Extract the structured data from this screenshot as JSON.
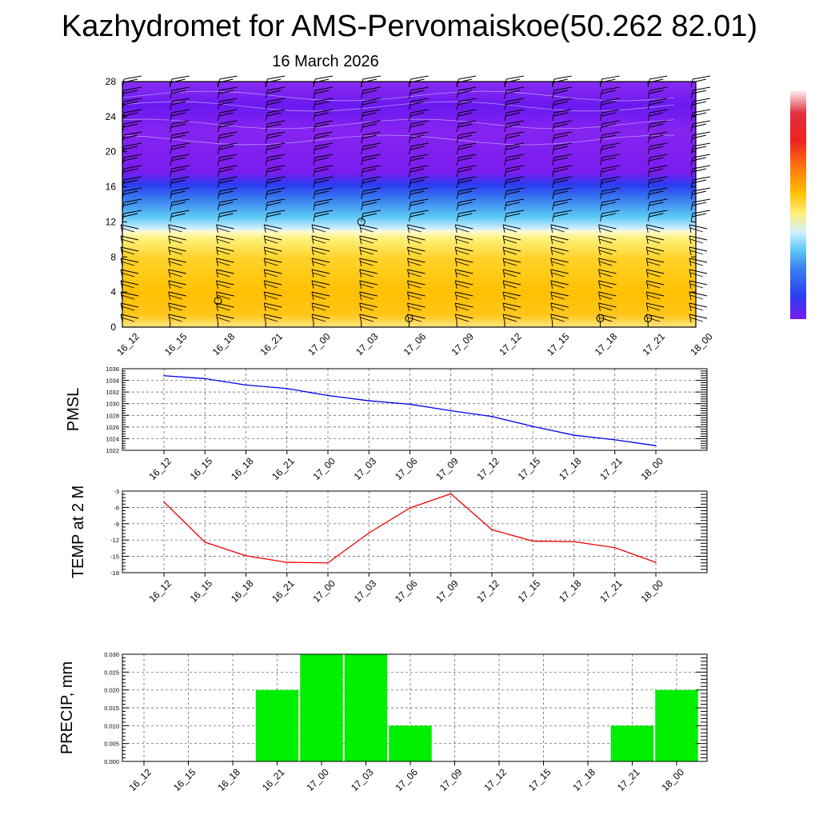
{
  "title": "Kazhydromet for AMS-Pervomaiskoe(50.262 82.01)",
  "subtitle": "16 March 2026",
  "colors": {
    "pmsl_line": "#0000ee",
    "temp_line": "#ee0000",
    "precip_bar": "#00ee00",
    "cold": "#7a1cf0",
    "warm": "#ffc000"
  },
  "chart_data": [
    {
      "type": "heatmap",
      "title": "",
      "x_tick_labels": [
        "16_12",
        "16_15",
        "16_18",
        "16_21",
        "17_00",
        "17_03",
        "17_06",
        "17_09",
        "17_12",
        "17_15",
        "17_18",
        "17_21",
        "18_00"
      ],
      "ylim": [
        0,
        28
      ],
      "y_ticks": [
        0,
        4,
        8,
        12,
        16,
        20,
        24,
        28
      ],
      "bands": [
        {
          "from": 0,
          "to": 11,
          "fill": "warm (yellow-orange)"
        },
        {
          "from": 11,
          "to": 14,
          "fill": "light blue"
        },
        {
          "from": 14,
          "to": 17.5,
          "fill": "blue"
        },
        {
          "from": 17.5,
          "to": 28,
          "fill": "violet"
        }
      ],
      "annotations": [
        {
          "x": "16_18",
          "y": 3,
          "symbol": "calm circle"
        },
        {
          "x": "17_03",
          "y": 12,
          "symbol": "calm circle"
        },
        {
          "x": "17_06",
          "y": 1,
          "symbol": "calm circle"
        },
        {
          "x": "17_18",
          "y": 1,
          "symbol": "calm circle"
        },
        {
          "x": "17_21",
          "y": 1,
          "symbol": "calm circle"
        }
      ],
      "colorbar": [
        "violet",
        "blue",
        "light blue",
        "yellow",
        "orange",
        "red",
        "white"
      ]
    },
    {
      "type": "line",
      "ylabel": "PMSL",
      "categories": [
        "16_12",
        "16_15",
        "16_18",
        "16_21",
        "17_00",
        "17_03",
        "17_06",
        "17_09",
        "17_12",
        "17_15",
        "17_18",
        "17_21",
        "18_00"
      ],
      "values": [
        1034.8,
        1034.3,
        1033.2,
        1032.6,
        1031.4,
        1030.5,
        1029.9,
        1028.8,
        1027.8,
        1026.1,
        1024.6,
        1023.8,
        1022.8
      ],
      "ylim": [
        1022,
        1036
      ],
      "y_ticks": [
        1022,
        1024,
        1026,
        1028,
        1030,
        1032,
        1034,
        1036
      ],
      "grid": true
    },
    {
      "type": "line",
      "ylabel": "TEMP at 2 M",
      "categories": [
        "16_12",
        "16_15",
        "16_18",
        "16_21",
        "17_00",
        "17_03",
        "17_06",
        "17_09",
        "17_12",
        "17_15",
        "17_18",
        "17_21",
        "18_00"
      ],
      "values": [
        -5.0,
        -12.4,
        -14.9,
        -16.1,
        -16.2,
        -10.7,
        -6.1,
        -3.5,
        -10.1,
        -12.2,
        -12.3,
        -13.4,
        -16.1
      ],
      "ylim": [
        -18,
        -3
      ],
      "y_ticks": [
        -18,
        -15,
        -12,
        -9,
        -6,
        -3
      ],
      "grid": true
    },
    {
      "type": "bar",
      "ylabel": "PRECIP, mm",
      "categories": [
        "16_12",
        "16_15",
        "16_18",
        "16_21",
        "17_00",
        "17_03",
        "17_06",
        "17_09",
        "17_12",
        "17_15",
        "17_18",
        "17_21",
        "18_00"
      ],
      "values": [
        0,
        0,
        0,
        0.02,
        0.03,
        0.03,
        0.01,
        0,
        0,
        0,
        0,
        0.01,
        0.02
      ],
      "ylim": [
        0,
        0.03
      ],
      "y_ticks": [
        "0.000",
        "0.005",
        "0.010",
        "0.015",
        "0.020",
        "0.025",
        "0.030"
      ],
      "grid": true
    }
  ]
}
